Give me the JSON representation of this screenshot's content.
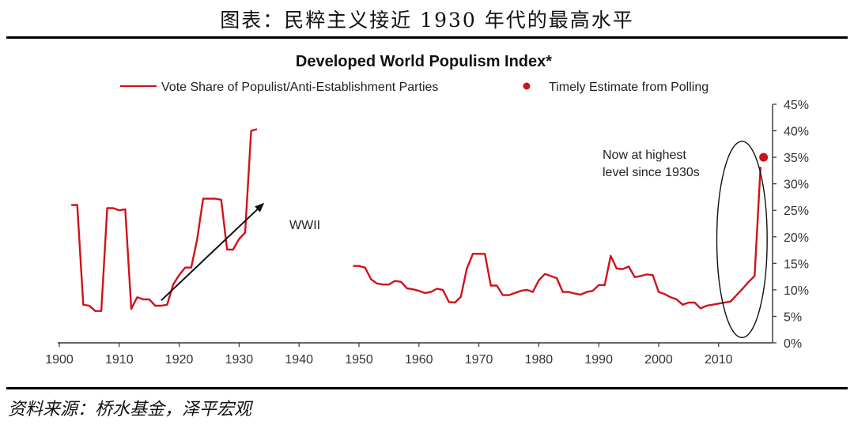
{
  "page": {
    "heading": "图表：民粹主义接近 1930 年代的最高水平",
    "source": "资料来源：桥水基金，泽平宏观"
  },
  "chart_data": {
    "type": "line",
    "title": "Developed World Populism Index*",
    "xlabel": "",
    "ylabel": "",
    "xlim": [
      1900,
      2019
    ],
    "ylim": [
      0,
      45
    ],
    "x_ticks": [
      "1900",
      "1910",
      "1920",
      "1930",
      "1940",
      "1950",
      "1960",
      "1970",
      "1980",
      "1990",
      "2000",
      "2010"
    ],
    "y_ticks": [
      "0%",
      "5%",
      "10%",
      "15%",
      "20%",
      "25%",
      "30%",
      "35%",
      "40%",
      "45%"
    ],
    "y_tick_values": [
      0,
      5,
      10,
      15,
      20,
      25,
      30,
      35,
      40,
      45
    ],
    "legend_placement": "top",
    "colors": {
      "series": "#d0121b",
      "annotation": "#111111"
    },
    "series": [
      {
        "name": "Vote Share of Populist/Anti-Establishment Parties",
        "segments": [
          [
            [
              1902,
              26
            ],
            [
              1903,
              26
            ],
            [
              1904,
              7.2
            ],
            [
              1905,
              7
            ],
            [
              1906,
              6
            ],
            [
              1907,
              6
            ],
            [
              1908,
              25.4
            ],
            [
              1909,
              25.4
            ],
            [
              1910,
              25
            ],
            [
              1911,
              25.2
            ],
            [
              1912,
              6.4
            ],
            [
              1913,
              8.6
            ],
            [
              1914,
              8.2
            ],
            [
              1915,
              8.2
            ],
            [
              1916,
              7
            ],
            [
              1917,
              7
            ],
            [
              1918,
              7.2
            ],
            [
              1919,
              11
            ],
            [
              1920,
              12.8
            ],
            [
              1921,
              14.2
            ],
            [
              1922,
              14.2
            ],
            [
              1923,
              19.5
            ],
            [
              1924,
              27.2
            ],
            [
              1925,
              27.2
            ],
            [
              1926,
              27.2
            ],
            [
              1927,
              27
            ],
            [
              1928,
              17.6
            ],
            [
              1929,
              17.6
            ],
            [
              1930,
              19.6
            ],
            [
              1931,
              20.8
            ],
            [
              1932,
              40
            ],
            [
              1933,
              40.3
            ]
          ],
          [
            [
              1949,
              14.5
            ],
            [
              1950,
              14.5
            ],
            [
              1951,
              14.2
            ],
            [
              1952,
              12
            ],
            [
              1953,
              11.2
            ],
            [
              1954,
              11
            ],
            [
              1955,
              11
            ],
            [
              1956,
              11.7
            ],
            [
              1957,
              11.5
            ],
            [
              1958,
              10.3
            ],
            [
              1959,
              10.1
            ],
            [
              1960,
              9.8
            ],
            [
              1961,
              9.4
            ],
            [
              1962,
              9.6
            ],
            [
              1963,
              10.2
            ],
            [
              1964,
              10
            ],
            [
              1965,
              7.7
            ],
            [
              1966,
              7.6
            ],
            [
              1967,
              8.7
            ],
            [
              1968,
              14
            ],
            [
              1969,
              16.8
            ],
            [
              1970,
              16.8
            ],
            [
              1971,
              16.8
            ],
            [
              1972,
              10.8
            ],
            [
              1973,
              10.8
            ],
            [
              1974,
              9
            ],
            [
              1975,
              9
            ],
            [
              1976,
              9.4
            ],
            [
              1977,
              9.8
            ],
            [
              1978,
              10
            ],
            [
              1979,
              9.6
            ],
            [
              1980,
              11.8
            ],
            [
              1981,
              13
            ],
            [
              1982,
              12.6
            ],
            [
              1983,
              12.2
            ],
            [
              1984,
              9.6
            ],
            [
              1985,
              9.6
            ],
            [
              1986,
              9.3
            ],
            [
              1987,
              9.1
            ],
            [
              1988,
              9.6
            ],
            [
              1989,
              9.8
            ],
            [
              1990,
              10.9
            ],
            [
              1991,
              10.9
            ],
            [
              1992,
              16.4
            ],
            [
              1993,
              14
            ],
            [
              1994,
              13.9
            ],
            [
              1995,
              14.4
            ],
            [
              1996,
              12.4
            ],
            [
              1997,
              12.6
            ],
            [
              1998,
              12.9
            ],
            [
              1999,
              12.8
            ],
            [
              2000,
              9.6
            ],
            [
              2001,
              9.2
            ],
            [
              2002,
              8.6
            ],
            [
              2003,
              8.2
            ],
            [
              2004,
              7.2
            ],
            [
              2005,
              7.6
            ],
            [
              2006,
              7.6
            ],
            [
              2007,
              6.5
            ],
            [
              2008,
              7
            ],
            [
              2009,
              7.2
            ],
            [
              2010,
              7.4
            ],
            [
              2011,
              7.6
            ],
            [
              2012,
              7.8
            ],
            [
              2013,
              9
            ],
            [
              2014,
              10.2
            ],
            [
              2015,
              11.5
            ],
            [
              2016,
              12.6
            ],
            [
              2017,
              33.2
            ]
          ]
        ]
      },
      {
        "name": "Timely Estimate from Polling",
        "type": "scatter",
        "points": [
          [
            2017.5,
            35
          ]
        ]
      }
    ],
    "annotations": {
      "wwii": "WWII",
      "now_line1": "Now at highest",
      "now_line2": "level since 1930s",
      "arrow_from": [
        1917,
        8
      ],
      "arrow_to": [
        1934,
        26.2
      ],
      "ellipse_center": [
        2013.9,
        19.5
      ],
      "ellipse_radius_years": 4.2,
      "ellipse_radius_pct": 18.5
    }
  }
}
